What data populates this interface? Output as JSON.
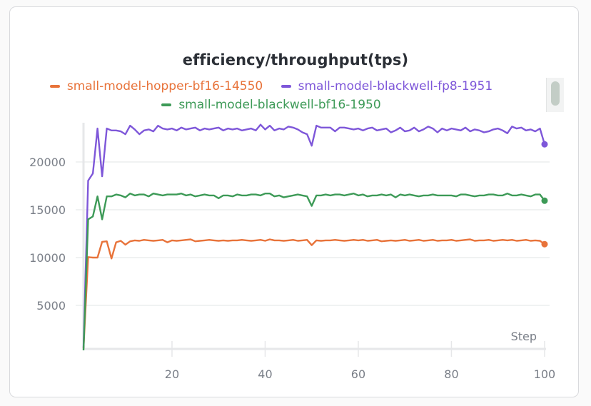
{
  "panel": {
    "title": "efficiency/throughput(tps)",
    "scroll_icon": "scrollbar-thumb"
  },
  "legend": [
    {
      "label": "small-model-hopper-bf16-14550",
      "color": "#e8733a"
    },
    {
      "label": "small-model-blackwell-fp8-1951",
      "color": "#7e57d9"
    },
    {
      "label": "small-model-blackwell-bf16-1950",
      "color": "#3d9a57"
    }
  ],
  "axes": {
    "x_label": "Step",
    "x_ticks": [
      "20",
      "40",
      "60",
      "80",
      "100"
    ],
    "y_ticks": [
      "5000",
      "10000",
      "15000",
      "20000"
    ]
  },
  "chart_data": {
    "type": "line",
    "title": "efficiency/throughput(tps)",
    "xlabel": "Step",
    "ylabel": "",
    "xlim": [
      1,
      100
    ],
    "ylim": [
      0,
      24000
    ],
    "grid": true,
    "legend_position": "top",
    "x": [
      1,
      2,
      3,
      4,
      5,
      6,
      7,
      8,
      9,
      10,
      11,
      12,
      13,
      14,
      15,
      16,
      17,
      18,
      19,
      20,
      21,
      22,
      23,
      24,
      25,
      26,
      27,
      28,
      29,
      30,
      31,
      32,
      33,
      34,
      35,
      36,
      37,
      38,
      39,
      40,
      41,
      42,
      43,
      44,
      45,
      46,
      47,
      48,
      49,
      50,
      51,
      52,
      53,
      54,
      55,
      56,
      57,
      58,
      59,
      60,
      61,
      62,
      63,
      64,
      65,
      66,
      67,
      68,
      69,
      70,
      71,
      72,
      73,
      74,
      75,
      76,
      77,
      78,
      79,
      80,
      81,
      82,
      83,
      84,
      85,
      86,
      87,
      88,
      89,
      90,
      91,
      92,
      93,
      94,
      95,
      96,
      97,
      98,
      99,
      100
    ],
    "series": [
      {
        "name": "small-model-hopper-bf16-14550",
        "color": "#e8733a",
        "values": [
          500,
          10050,
          10000,
          10000,
          11650,
          11700,
          9900,
          11600,
          11750,
          11350,
          11700,
          11800,
          11750,
          11850,
          11800,
          11750,
          11800,
          11850,
          11600,
          11800,
          11750,
          11800,
          11850,
          11900,
          11700,
          11750,
          11800,
          11850,
          11800,
          11750,
          11800,
          11750,
          11800,
          11800,
          11850,
          11800,
          11750,
          11800,
          11850,
          11750,
          11900,
          11800,
          11800,
          11750,
          11800,
          11850,
          11750,
          11800,
          11850,
          11300,
          11800,
          11750,
          11800,
          11800,
          11850,
          11800,
          11750,
          11800,
          11850,
          11800,
          11850,
          11750,
          11800,
          11850,
          11700,
          11750,
          11800,
          11750,
          11800,
          11850,
          11750,
          11800,
          11850,
          11750,
          11800,
          11850,
          11750,
          11800,
          11800,
          11850,
          11750,
          11800,
          11850,
          11900,
          11750,
          11800,
          11800,
          11850,
          11750,
          11800,
          11850,
          11800,
          11850,
          11750,
          11800,
          11850,
          11750,
          11800,
          11750,
          11400
        ]
      },
      {
        "name": "small-model-blackwell-fp8-1951",
        "color": "#7e57d9",
        "values": [
          600,
          18050,
          18800,
          23500,
          18500,
          23500,
          23300,
          23300,
          23200,
          22900,
          23800,
          23400,
          22900,
          23300,
          23400,
          23200,
          23800,
          23500,
          23400,
          23500,
          23300,
          23600,
          23400,
          23500,
          23600,
          23300,
          23500,
          23400,
          23500,
          23600,
          23300,
          23500,
          23400,
          23500,
          23300,
          23400,
          23500,
          23300,
          23900,
          23400,
          23800,
          23300,
          23500,
          23400,
          23700,
          23600,
          23400,
          23100,
          22900,
          21700,
          23800,
          23600,
          23600,
          23600,
          23200,
          23600,
          23600,
          23500,
          23400,
          23500,
          23300,
          23500,
          23600,
          23300,
          23400,
          23500,
          23100,
          23300,
          23600,
          23200,
          23300,
          23600,
          23200,
          23400,
          23700,
          23500,
          23100,
          23500,
          23300,
          23500,
          23400,
          23300,
          23600,
          23200,
          23400,
          23300,
          23100,
          23200,
          23400,
          23500,
          23300,
          23000,
          23700,
          23500,
          23600,
          23300,
          23400,
          23200,
          23500,
          21850
        ]
      },
      {
        "name": "small-model-blackwell-bf16-1950",
        "color": "#3d9a57",
        "values": [
          300,
          14000,
          14300,
          16400,
          14000,
          16400,
          16400,
          16600,
          16500,
          16300,
          16700,
          16500,
          16600,
          16600,
          16400,
          16700,
          16600,
          16500,
          16600,
          16600,
          16600,
          16700,
          16500,
          16600,
          16400,
          16500,
          16600,
          16500,
          16500,
          16200,
          16500,
          16500,
          16400,
          16600,
          16500,
          16500,
          16600,
          16600,
          16500,
          16700,
          16700,
          16400,
          16500,
          16300,
          16400,
          16500,
          16600,
          16500,
          16400,
          15400,
          16500,
          16500,
          16600,
          16500,
          16600,
          16600,
          16500,
          16600,
          16700,
          16500,
          16600,
          16400,
          16500,
          16500,
          16600,
          16500,
          16600,
          16300,
          16600,
          16500,
          16600,
          16500,
          16400,
          16500,
          16500,
          16600,
          16500,
          16500,
          16500,
          16500,
          16400,
          16600,
          16600,
          16500,
          16400,
          16500,
          16500,
          16600,
          16600,
          16500,
          16500,
          16700,
          16500,
          16500,
          16600,
          16500,
          16400,
          16600,
          16600,
          15950
        ]
      }
    ]
  }
}
